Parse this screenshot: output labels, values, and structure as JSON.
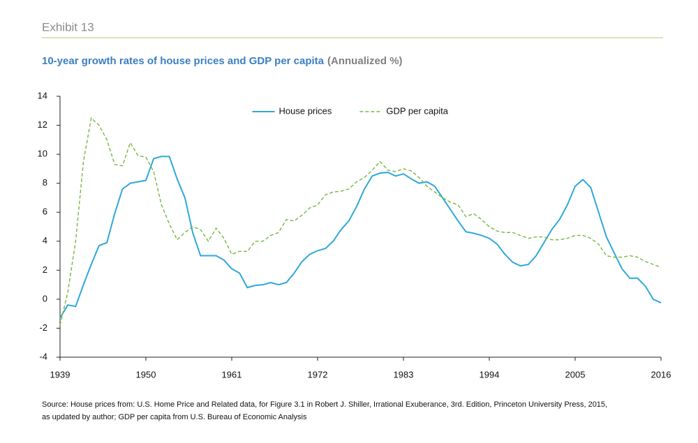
{
  "exhibit": "Exhibit 13",
  "chart_data": {
    "type": "line",
    "title": "10-year growth rates of house prices and GDP per capita",
    "subtitle": "(Annualized %)",
    "x": [
      1939,
      1940,
      1941,
      1942,
      1943,
      1944,
      1945,
      1946,
      1947,
      1948,
      1949,
      1950,
      1951,
      1952,
      1953,
      1954,
      1955,
      1956,
      1957,
      1958,
      1959,
      1960,
      1961,
      1962,
      1963,
      1964,
      1965,
      1966,
      1967,
      1968,
      1969,
      1970,
      1971,
      1972,
      1973,
      1974,
      1975,
      1976,
      1977,
      1978,
      1979,
      1980,
      1981,
      1982,
      1983,
      1984,
      1985,
      1986,
      1987,
      1988,
      1989,
      1990,
      1991,
      1992,
      1993,
      1994,
      1995,
      1996,
      1997,
      1998,
      1999,
      2000,
      2001,
      2002,
      2003,
      2004,
      2005,
      2006,
      2007,
      2008,
      2009,
      2010,
      2011,
      2012,
      2013,
      2014,
      2015,
      2016
    ],
    "series": [
      {
        "name": "House prices",
        "color": "#2ea8d8",
        "linestyle": "solid",
        "values": [
          -1.3,
          -0.4,
          -0.5,
          1.0,
          2.4,
          3.7,
          3.9,
          5.9,
          7.6,
          8.0,
          8.1,
          8.2,
          9.7,
          9.85,
          9.85,
          8.3,
          7.0,
          4.6,
          3.0,
          3.0,
          3.0,
          2.7,
          2.1,
          1.8,
          0.8,
          0.95,
          1.0,
          1.15,
          1.0,
          1.15,
          1.8,
          2.6,
          3.1,
          3.35,
          3.5,
          4.0,
          4.8,
          5.4,
          6.4,
          7.6,
          8.5,
          8.7,
          8.75,
          8.5,
          8.65,
          8.3,
          8.0,
          8.1,
          7.8,
          7.0,
          6.2,
          5.4,
          4.65,
          4.55,
          4.4,
          4.2,
          3.8,
          3.1,
          2.55,
          2.3,
          2.4,
          3.0,
          3.9,
          4.8,
          5.5,
          6.5,
          7.8,
          8.25,
          7.7,
          6.0,
          4.3,
          3.2,
          2.1,
          1.45,
          1.45,
          0.9,
          0.0,
          -0.25
        ]
      },
      {
        "name": "GDP per capita",
        "color": "#76b83f",
        "linestyle": "dashed",
        "values": [
          -1.8,
          0.5,
          4.0,
          9.5,
          12.5,
          12.0,
          11.0,
          9.3,
          9.2,
          10.8,
          9.9,
          9.8,
          8.8,
          6.5,
          5.2,
          4.1,
          4.6,
          5.0,
          4.8,
          4.0,
          4.9,
          4.2,
          3.1,
          3.3,
          3.3,
          4.0,
          4.0,
          4.4,
          4.6,
          5.5,
          5.4,
          5.8,
          6.3,
          6.5,
          7.2,
          7.4,
          7.45,
          7.6,
          8.1,
          8.4,
          8.9,
          9.5,
          8.9,
          8.8,
          9.0,
          8.85,
          8.4,
          7.8,
          7.4,
          7.0,
          6.7,
          6.5,
          5.7,
          5.9,
          5.5,
          5.0,
          4.7,
          4.6,
          4.6,
          4.4,
          4.2,
          4.3,
          4.3,
          4.1,
          4.1,
          4.2,
          4.4,
          4.4,
          4.2,
          3.8,
          3.0,
          2.9,
          2.9,
          3.0,
          2.9,
          2.6,
          2.4,
          2.2
        ]
      }
    ],
    "xlim": [
      1939,
      2016
    ],
    "xticks": [
      1939,
      1950,
      1961,
      1972,
      1983,
      1994,
      2005,
      2016
    ],
    "ylim": [
      -4,
      14
    ],
    "yticks": [
      -4,
      -2,
      0,
      2,
      4,
      6,
      8,
      10,
      12,
      14
    ],
    "grid": false,
    "legend": "upper center"
  },
  "source": [
    "Source: House prices from: U.S. Home Price and Related data, for Figure 3.1 in Robert J. Shiller, Irrational Exuberance, 3rd. Edition, Princeton University Press, 2015,",
    "as updated by author; GDP per capita from U.S. Bureau of Economic Analysis"
  ]
}
